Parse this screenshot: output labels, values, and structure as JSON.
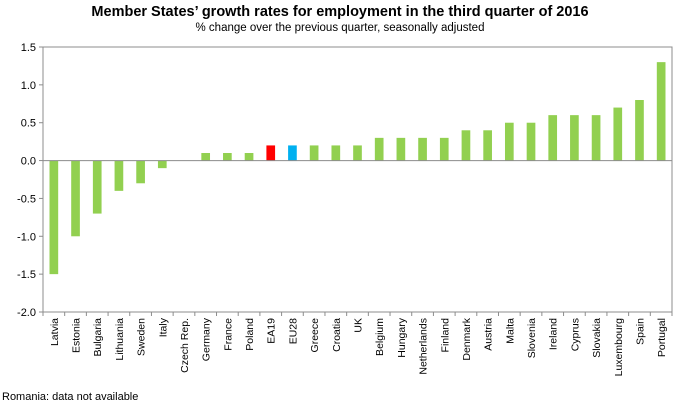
{
  "chart_data": {
    "type": "bar",
    "title": "Member States’ growth rates for employment in the third quarter of 2016",
    "subtitle": "% change over the previous quarter, seasonally adjusted",
    "xlabel": "",
    "ylabel": "",
    "ylim": [
      -2.0,
      1.5
    ],
    "yticks": [
      "1.5",
      "1.0",
      "0.5",
      "0.0",
      "-0.5",
      "-1.0",
      "-1.5",
      "-2.0"
    ],
    "ytick_values": [
      1.5,
      1.0,
      0.5,
      0.0,
      -0.5,
      -1.0,
      -1.5,
      -2.0
    ],
    "categories": [
      "Latvia",
      "Estonia",
      "Bulgaria",
      "Lithuania",
      "Sweden",
      "Italy",
      "Czech Rep.",
      "Germany",
      "France",
      "Poland",
      "EA19",
      "EU28",
      "Greece",
      "Croatia",
      "UK",
      "Belgium",
      "Hungary",
      "Netherlands",
      "Finland",
      "Denmark",
      "Austria",
      "Malta",
      "Slovenia",
      "Ireland",
      "Cyprus",
      "Slovakia",
      "Luxembourg",
      "Spain",
      "Portugal"
    ],
    "values": [
      -1.5,
      -1.0,
      -0.7,
      -0.4,
      -0.3,
      -0.1,
      0.0,
      0.1,
      0.1,
      0.1,
      0.2,
      0.2,
      0.2,
      0.2,
      0.2,
      0.3,
      0.3,
      0.3,
      0.3,
      0.4,
      0.4,
      0.5,
      0.5,
      0.6,
      0.6,
      0.6,
      0.7,
      0.8,
      1.3
    ],
    "colors": {
      "default": "#92d050",
      "EA19": "#ff0000",
      "EU28": "#00b0f0"
    },
    "grid": false
  },
  "footnote": "Romania: data not available"
}
